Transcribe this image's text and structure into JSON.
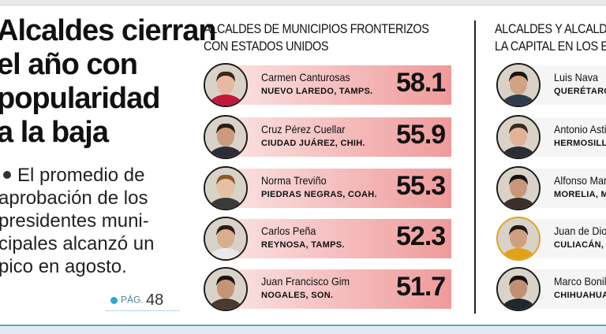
{
  "headline": [
    "Alcaldes cierran",
    "el año con",
    "popularidad",
    "a la baja"
  ],
  "deck": [
    "El promedio de",
    "aprobación de los",
    "presidentes muni-",
    "cipales alcanzó un",
    "pico en agosto."
  ],
  "page_ref": {
    "label": "PÁG.",
    "number": "48"
  },
  "border_section": {
    "title_line1": "ALCALDES DE MUNICIPIOS FRONTERIZOS",
    "title_line2": "CON ESTADOS UNIDOS",
    "rows": [
      {
        "name": "Carmen Canturosas",
        "city": "NUEVO LAREDO, TAMPS.",
        "value": "58.1"
      },
      {
        "name": "Cruz Pérez Cuellar",
        "city": "CIUDAD JUÁREZ, CHIH.",
        "value": "55.9"
      },
      {
        "name": "Norma Treviño",
        "city": "PIEDRAS NEGRAS, COAH.",
        "value": "55.3"
      },
      {
        "name": "Carlos Peña",
        "city": "REYNOSA, TAMPS.",
        "value": "52.3"
      },
      {
        "name": "Juan Francisco Gim",
        "city": "NOGALES, SON.",
        "value": "51.7"
      }
    ]
  },
  "capital_section": {
    "title_line1": "ALCALDES Y ALCALD",
    "title_line2": "LA CAPITAL EN LOS E",
    "rows": [
      {
        "name": "Luis Nava",
        "city": "QUERÉTARO, Q"
      },
      {
        "name": "Antonio Astia",
        "city": "HERMOSILLO,"
      },
      {
        "name": "Alfonso Mart",
        "city": "MORELIA, MI"
      },
      {
        "name": "Juan de Dios",
        "city": "CULIACÁN, S"
      },
      {
        "name": "Marco Bonill",
        "city": "CHIHUAHUA,"
      }
    ]
  },
  "colors": {
    "bar_start": "#fbe3e3",
    "bar_end": "#ef9a9a",
    "accent": "#2fa7d1"
  }
}
